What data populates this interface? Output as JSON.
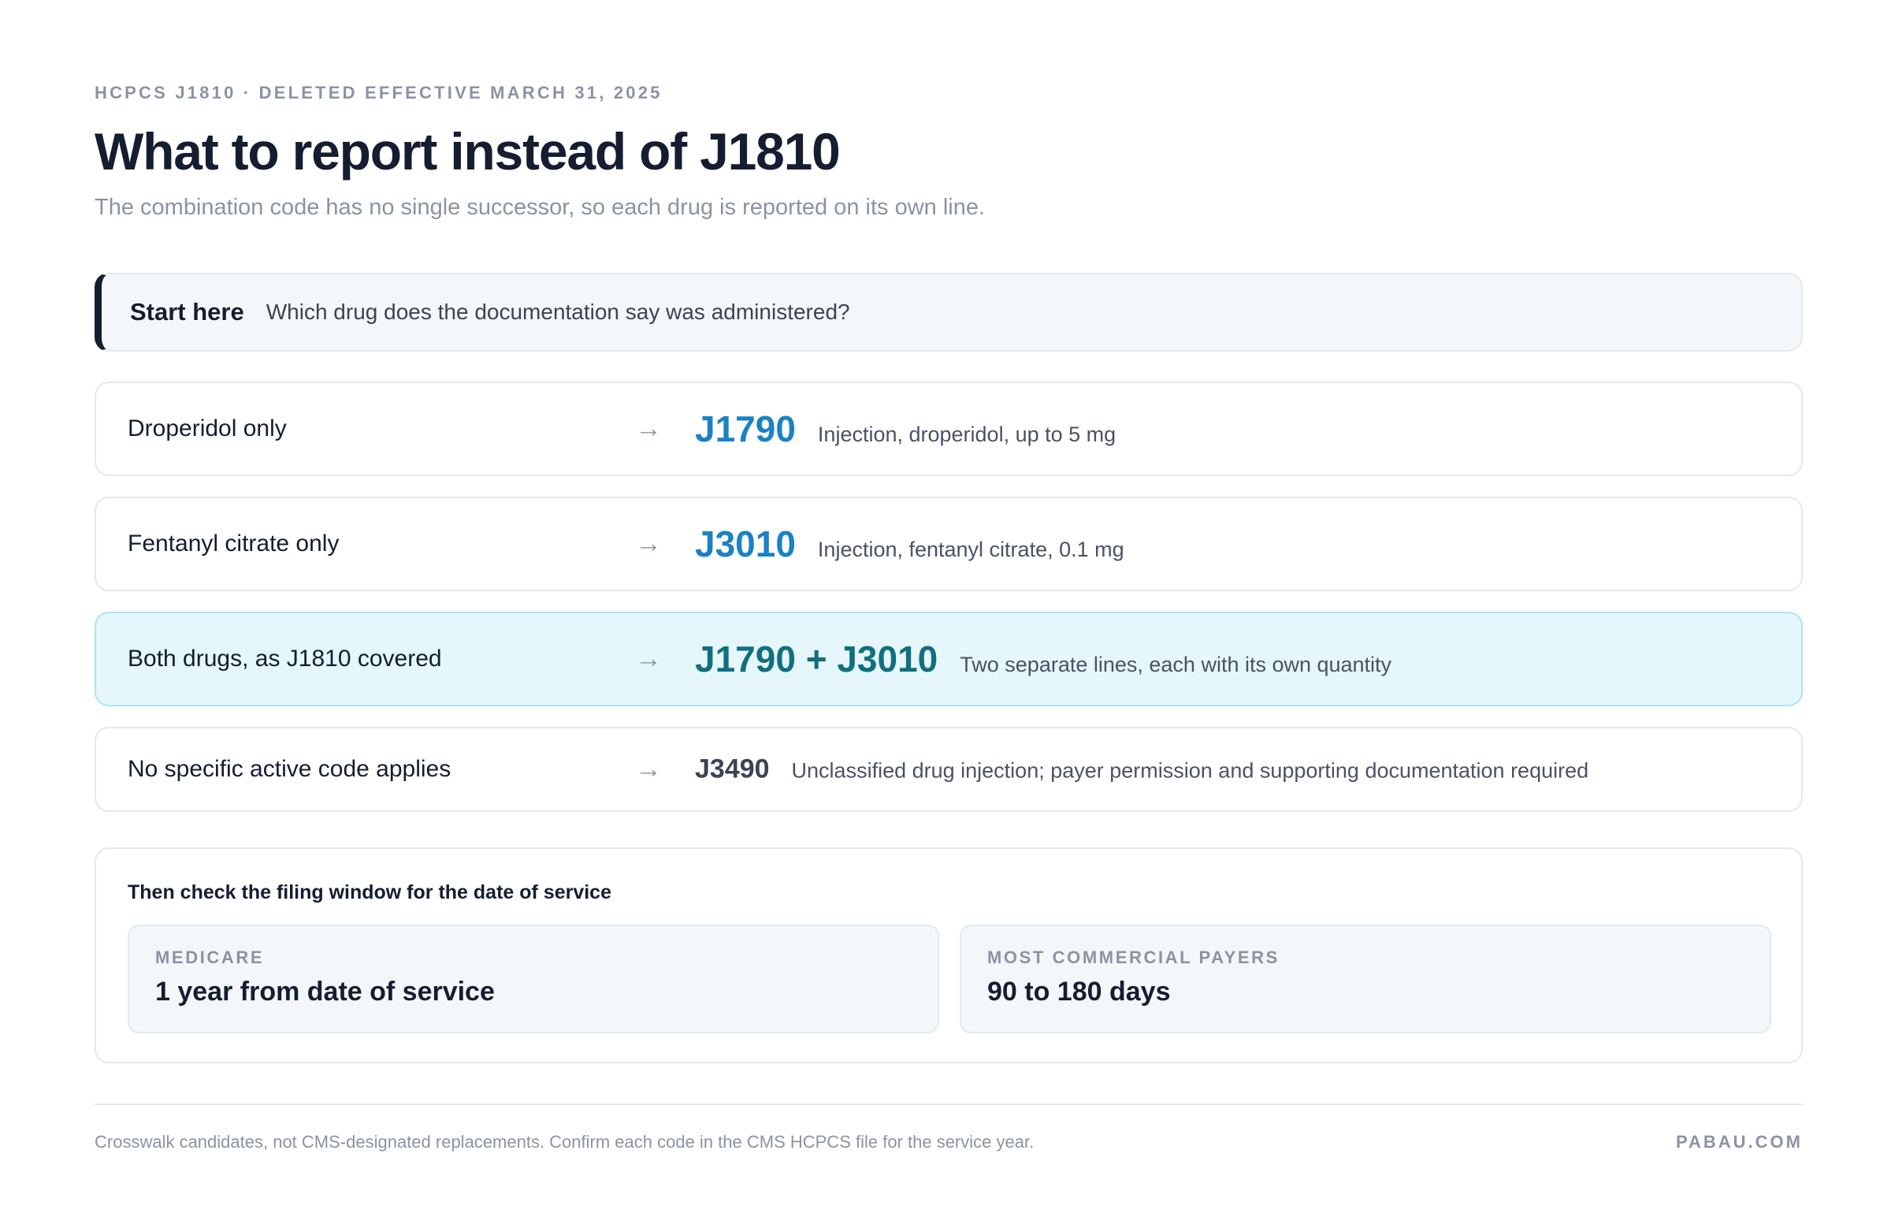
{
  "header": {
    "eyebrow": "HCPCS J1810 · DELETED EFFECTIVE MARCH 31, 2025",
    "title": "What to report instead of J1810",
    "subtitle": "The combination code has no single successor, so each drug is reported on its own line."
  },
  "start": {
    "label": "Start here",
    "question": "Which drug does the documentation say was administered?"
  },
  "rows": [
    {
      "condition": "Droperidol only",
      "arrow": "→",
      "code": "J1790",
      "description": "Injection, droperidol, up to 5 mg"
    },
    {
      "condition": "Fentanyl citrate only",
      "arrow": "→",
      "code": "J3010",
      "description": "Injection, fentanyl citrate, 0.1 mg"
    },
    {
      "condition": "Both drugs, as J1810 covered",
      "arrow": "→",
      "code": "J1790 + J3010",
      "description": "Two separate lines, each with its own quantity"
    },
    {
      "condition": "No specific active code applies",
      "arrow": "→",
      "code": "J3490",
      "description": "Unclassified drug injection; payer permission and supporting documentation required"
    }
  ],
  "filing": {
    "title": "Then check the filing window for the date of service",
    "cards": [
      {
        "label": "MEDICARE",
        "value": "1 year from date of service"
      },
      {
        "label": "MOST COMMERCIAL PAYERS",
        "value": "90 to 180 days"
      }
    ]
  },
  "footer": {
    "note": "Crosswalk candidates, not CMS-designated replacements. Confirm each code in the CMS HCPCS file for the service year.",
    "brand": "PABAU.COM"
  },
  "colors": {
    "primary_code": "#1a82c4",
    "highlight_code": "#116f7e",
    "highlight_bg": "#e5f7fb",
    "accent_bar": "#151d30"
  }
}
